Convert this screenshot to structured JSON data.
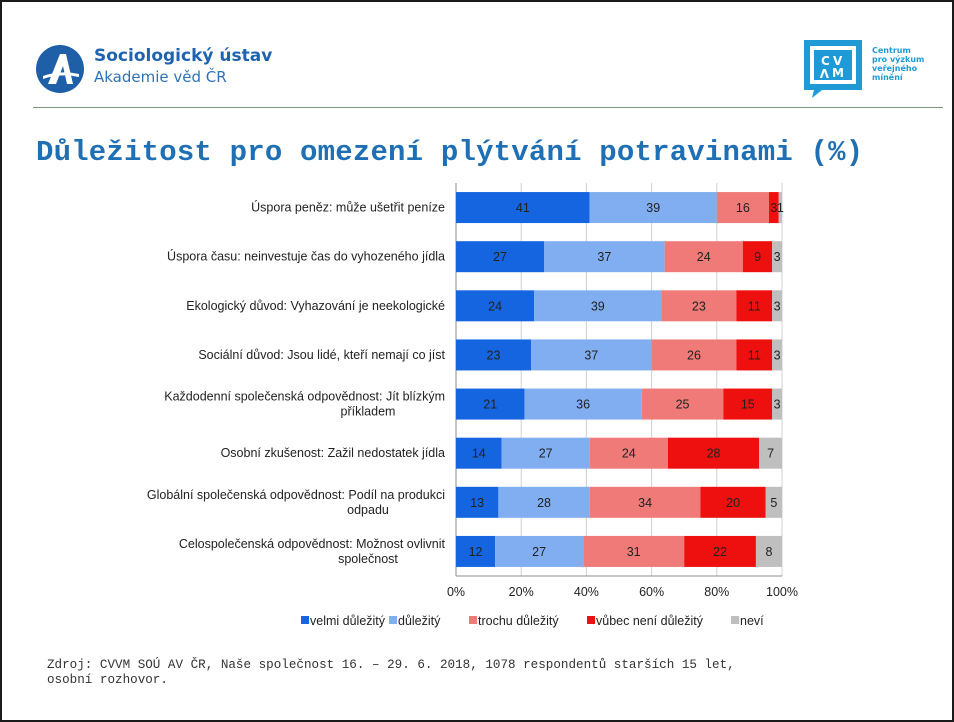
{
  "header": {
    "org_name": "Sociologický ústav",
    "org_sub": "Akademie věd ČR",
    "right_logo_letters": [
      "C",
      "V",
      "V",
      "M"
    ],
    "right_logo_text": [
      "Centrum",
      "pro výzkum",
      "veřejného",
      "mínění"
    ]
  },
  "title": "Důležitost pro omezení plýtvání potravinami (%)",
  "source": "Zdroj: CVVM SOÚ AV ČR, Naše společnost 16. – 29. 6. 2018, 1078 respondentů starších 15 let,\nosobní rozhovor.",
  "colors": {
    "velmi": "#1565e0",
    "dulezity": "#80aef0",
    "trochu": "#f07a78",
    "vubec": "#ee0f0f",
    "nevi": "#bfbfbf",
    "title": "#1f6fb5"
  },
  "chart_data": {
    "type": "bar",
    "orientation": "horizontal",
    "stacked": "percent",
    "categories": [
      [
        "Úspora peněz: může ušetřit peníze"
      ],
      [
        "Úspora času: neinvestuje čas do vyhozeného jídla"
      ],
      [
        "Ekologický důvod: Vyhazování je neekologické"
      ],
      [
        "Sociální důvod: Jsou lidé, kteří nemají co jíst"
      ],
      [
        "Každodenní společenská odpovědnost: Jít blízkým",
        "příkladem"
      ],
      [
        "Osobní zkušenost: Zažil nedostatek jídla"
      ],
      [
        "Globální společenská odpovědnost: Podíl na produkci",
        "odpadu"
      ],
      [
        "Celospolečenská odpovědnost: Možnost ovlivnit",
        "společnost"
      ]
    ],
    "series": [
      {
        "name": "velmi důležitý",
        "color": "#1565e0",
        "values": [
          41,
          27,
          24,
          23,
          21,
          14,
          13,
          12
        ]
      },
      {
        "name": "důležitý",
        "color": "#80aef0",
        "values": [
          39,
          37,
          39,
          37,
          36,
          27,
          28,
          27
        ]
      },
      {
        "name": "trochu důležitý",
        "color": "#f07a78",
        "values": [
          16,
          24,
          23,
          26,
          25,
          24,
          34,
          31
        ]
      },
      {
        "name": "vůbec není důležitý",
        "color": "#ee0f0f",
        "values": [
          3,
          9,
          11,
          11,
          15,
          28,
          20,
          22
        ]
      },
      {
        "name": "neví",
        "color": "#bfbfbf",
        "values": [
          1,
          3,
          3,
          3,
          3,
          7,
          5,
          8
        ]
      }
    ],
    "xlim": [
      0,
      100
    ],
    "xticks": [
      "0%",
      "20%",
      "40%",
      "60%",
      "80%",
      "100%"
    ],
    "grid": true,
    "legend": "bottom"
  }
}
